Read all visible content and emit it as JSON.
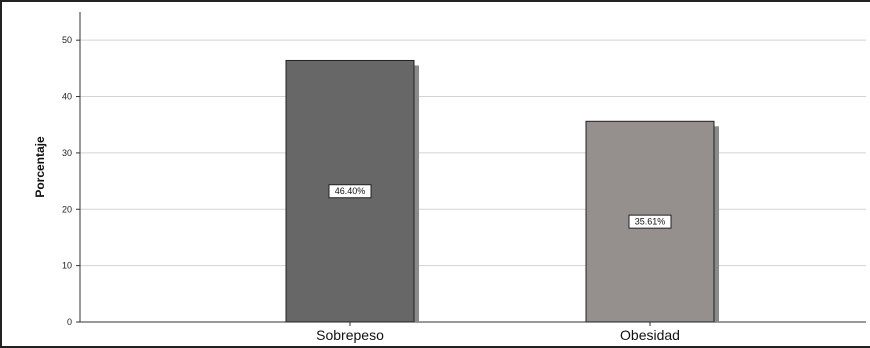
{
  "chart_data": {
    "type": "bar",
    "categories": [
      "Sobrepeso",
      "Obesidad"
    ],
    "values": [
      46.4,
      35.61
    ],
    "data_labels": [
      "46.40%",
      "35.61%"
    ],
    "ylabel": "Porcentaje",
    "xlabel": "",
    "title": "",
    "ylim": [
      0,
      55
    ],
    "yticks": [
      0,
      10,
      20,
      30,
      40,
      50
    ],
    "grid": true,
    "bar_colors": [
      "#676767",
      "#958f8d"
    ],
    "shadow_color": "#8a8a8a"
  }
}
